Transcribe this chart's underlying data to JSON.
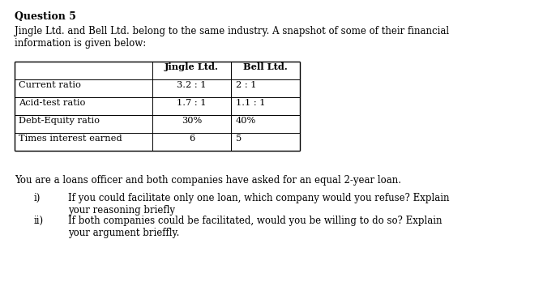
{
  "title": "Question 5",
  "intro_text": "Jingle Ltd. and Bell Ltd. belong to the same industry. A snapshot of some of their financial\ninformation is given below:",
  "table_headers": [
    "",
    "Jingle Ltd.",
    "Bell Ltd."
  ],
  "table_rows": [
    [
      "Current ratio",
      "3.2 : 1",
      "2 : 1"
    ],
    [
      "Acid-test ratio",
      "1.7 : 1",
      "1.1 : 1"
    ],
    [
      "Debt-Equity ratio",
      "30%",
      "40%"
    ],
    [
      "Times interest earned",
      "6",
      "5"
    ]
  ],
  "loan_text": "You are a loans officer and both companies have asked for an equal 2-year loan.",
  "questions": [
    [
      "i)",
      "If you could facilitate only one loan, which company would you refuse? Explain\nyour reasoning briefly"
    ],
    [
      "ii)",
      "If both companies could be facilitated, would you be willing to do so? Explain\nyour argument brieffly."
    ]
  ],
  "bg_color": "#ffffff",
  "text_color": "#000000",
  "font_size_title": 9,
  "font_size_body": 8.5,
  "font_size_table": 8.2
}
